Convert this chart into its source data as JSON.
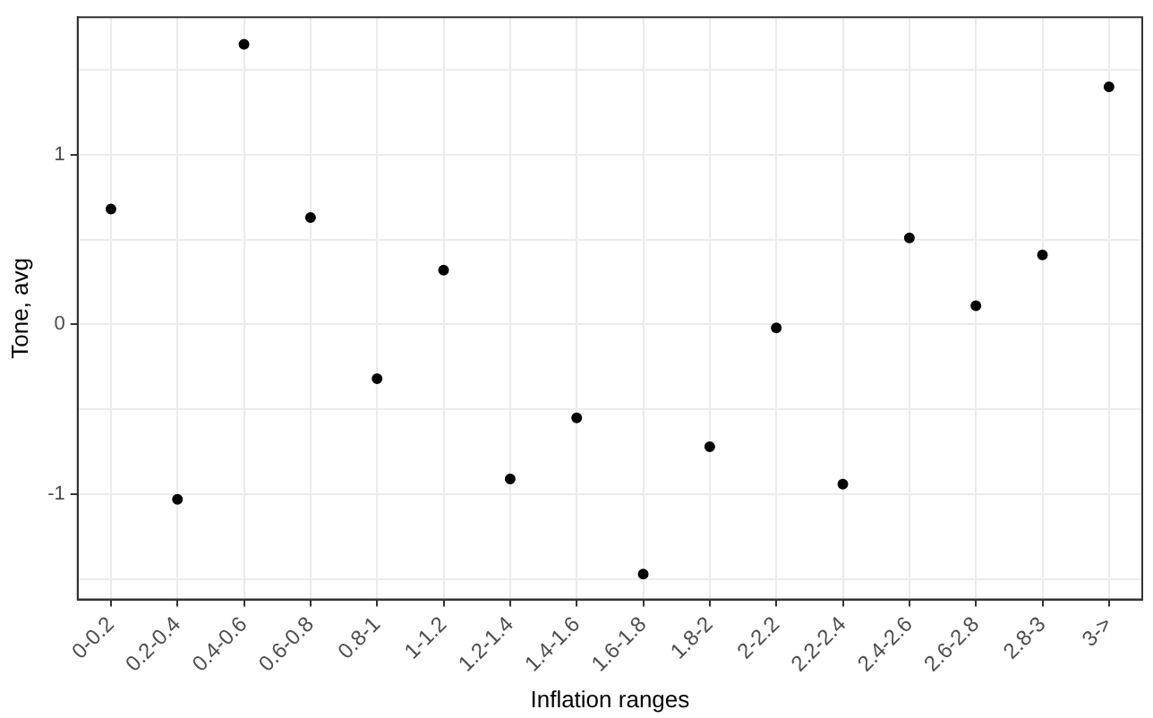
{
  "chart_data": {
    "type": "scatter",
    "xlabel": "Inflation ranges",
    "ylabel": "Tone, avg",
    "categories": [
      "0-0.2",
      "0.2-0.4",
      "0.4-0.6",
      "0.6-0.8",
      "0.8-1",
      "1-1.2",
      "1.2-1.4",
      "1.4-1.6",
      "1.6-1.8",
      "1.8-2",
      "2-2.2",
      "2.2-2.4",
      "2.4-2.6",
      "2.6-2.8",
      "2.8-3",
      "3->"
    ],
    "values": [
      0.68,
      -1.03,
      1.65,
      0.63,
      -0.32,
      0.32,
      -0.91,
      -0.55,
      -1.47,
      -0.72,
      -0.02,
      -0.94,
      0.51,
      0.11,
      0.41,
      1.4
    ],
    "color": "#000000",
    "marker": "circle",
    "grid": true,
    "legend": false,
    "ylim": [
      -1.62,
      1.81
    ],
    "yticks": [
      {
        "value": -1.5,
        "label": null
      },
      -1,
      {
        "value": -0.5,
        "label": null
      },
      0,
      {
        "value": 0.5,
        "label": null
      },
      1,
      {
        "value": 1.5,
        "label": null
      }
    ]
  }
}
